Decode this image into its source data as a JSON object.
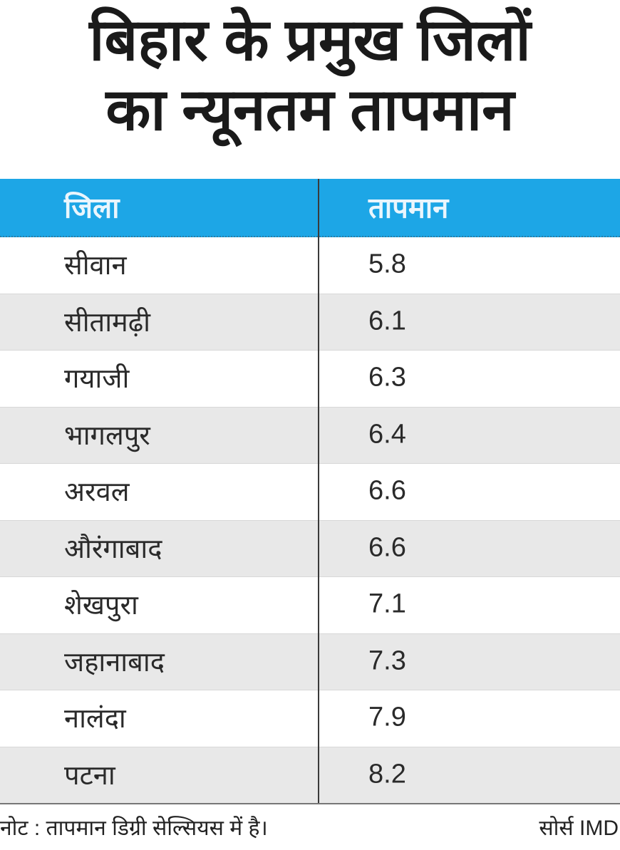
{
  "title": {
    "line1": "बिहार के प्रमुख जिलों",
    "line2": "का न्यूनतम तापमान"
  },
  "chart_data": {
    "type": "table",
    "columns": [
      "जिला",
      "तापमान"
    ],
    "rows": [
      {
        "district": "सीवान",
        "temp": "5.8"
      },
      {
        "district": "सीतामढ़ी",
        "temp": "6.1"
      },
      {
        "district": "गयाजी",
        "temp": "6.3"
      },
      {
        "district": "भागलपुर",
        "temp": "6.4"
      },
      {
        "district": "अरवल",
        "temp": "6.6"
      },
      {
        "district": "औरंगाबाद",
        "temp": "6.6"
      },
      {
        "district": "शेखपुरा",
        "temp": "7.1"
      },
      {
        "district": "जहानाबाद",
        "temp": "7.3"
      },
      {
        "district": "नालंदा",
        "temp": "7.9"
      },
      {
        "district": "पटना",
        "temp": "8.2"
      }
    ],
    "header_color": "#1da6e6",
    "stripe_color": "#e8e8e8"
  },
  "footer": {
    "note": "नोट : तापमान डिग्री सेल्सियस में है।",
    "source": "सोर्स IMD"
  }
}
